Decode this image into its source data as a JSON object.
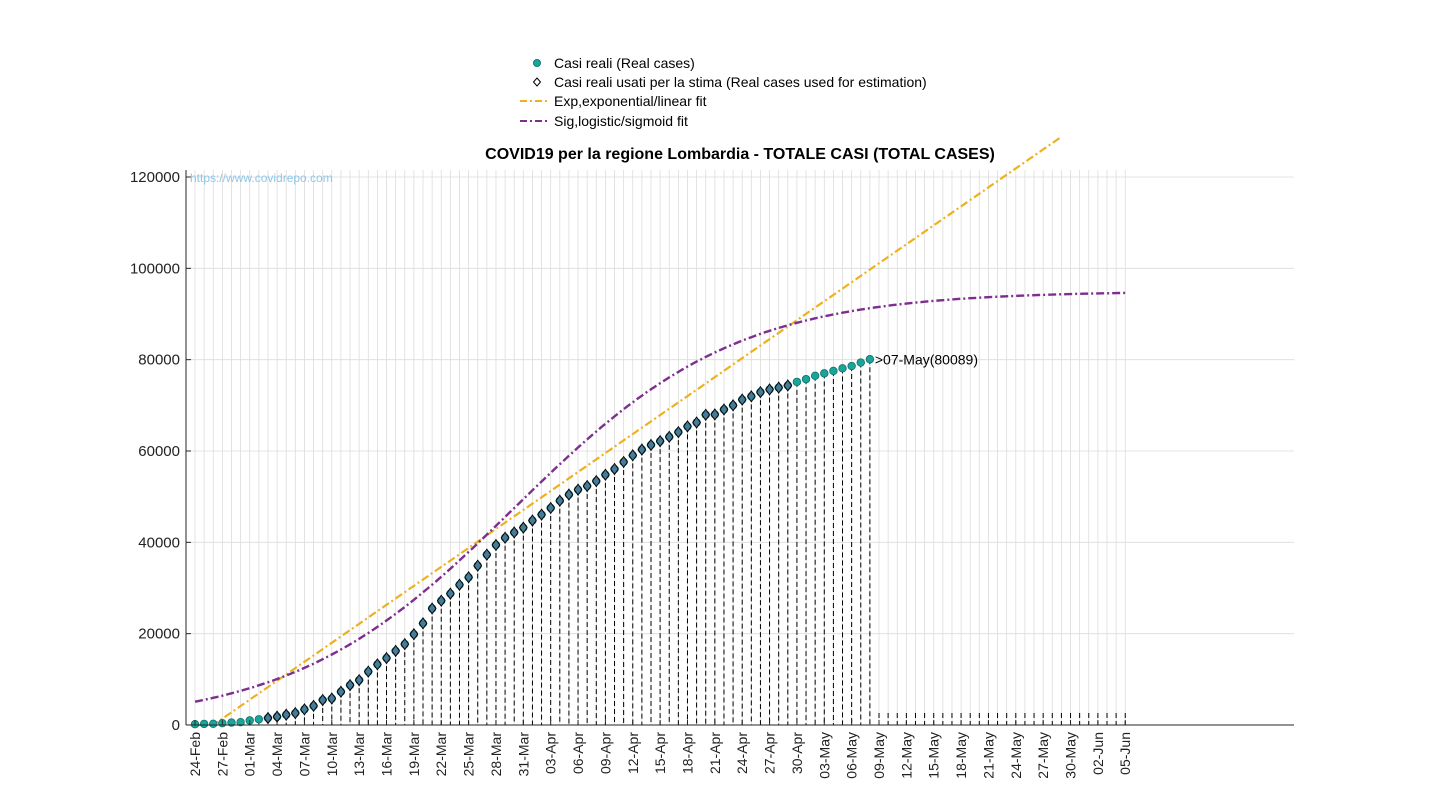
{
  "chart_data": {
    "type": "scatter",
    "title": "COVID19 per la regione Lombardia - TOTALE CASI (TOTAL CASES)",
    "watermark": "https://www.covidrepo.com",
    "xlabel": "",
    "ylabel": "",
    "x_start_date": "2020-02-24",
    "xlim_dates": [
      "2020-02-24",
      "2020-06-05"
    ],
    "ylim": [
      0,
      120000
    ],
    "y_ticks": [
      0,
      20000,
      40000,
      60000,
      80000,
      100000,
      120000
    ],
    "y_tick_labels": [
      "0",
      "20000",
      "40000",
      "60000",
      "80000",
      "100000",
      "120000"
    ],
    "x_tick_labels": [
      "24-Feb",
      "27-Feb",
      "01-Mar",
      "04-Mar",
      "07-Mar",
      "10-Mar",
      "13-Mar",
      "16-Mar",
      "19-Mar",
      "22-Mar",
      "25-Mar",
      "28-Mar",
      "31-Mar",
      "03-Apr",
      "06-Apr",
      "09-Apr",
      "12-Apr",
      "15-Apr",
      "18-Apr",
      "21-Apr",
      "24-Apr",
      "27-Apr",
      "30-Apr",
      "03-May",
      "06-May",
      "09-May",
      "12-May",
      "15-May",
      "18-May",
      "21-May",
      "24-May",
      "27-May",
      "30-May",
      "02-Jun",
      "05-Jun"
    ],
    "grid": true,
    "legend_position": "top-center",
    "legend": [
      {
        "label": "Casi reali (Real cases)",
        "marker": "circle",
        "color": "#1aa59a"
      },
      {
        "label": "Casi reali usati per la stima (Real cases used for estimation)",
        "marker": "diamond",
        "color": "#000000"
      },
      {
        "label": "Exp,exponential/linear fit",
        "line": "dash-dot",
        "color": "#edb120"
      },
      {
        "label": "Sig,logistic/sigmoid fit",
        "line": "dash-dot",
        "color": "#7e2f8e"
      }
    ],
    "annotation": ">07-May(80089)",
    "series": [
      {
        "name": "Casi reali (Real cases)",
        "color": "#1aa59a",
        "values": [
          172,
          240,
          258,
          403,
          531,
          615,
          984,
          1254,
          1520,
          1820,
          2251,
          2612,
          3420,
          4189,
          5469,
          5791,
          7280,
          8725,
          9820,
          11685,
          13272,
          14649,
          16220,
          17713,
          19884,
          22264,
          25515,
          27206,
          28761,
          30703,
          32346,
          34889,
          37298,
          39415,
          41007,
          42161,
          43208,
          44773,
          46065,
          47520,
          49118,
          50455,
          51534,
          52325,
          53414,
          54802,
          56048,
          57592,
          59052,
          60314,
          61326,
          62153,
          63094,
          64135,
          65381,
          66236,
          67931,
          68000,
          69092,
          70000,
          71256,
          71969,
          72889,
          73479,
          73876,
          74348,
          75134,
          75732,
          76469,
          77002,
          77528,
          78105,
          78605,
          79369,
          80089
        ],
        "used_for_estimation_start_index": 8
      }
    ],
    "fits": [
      {
        "name": "Exp,exponential/linear fit",
        "color": "#edb120",
        "linear_start_day": 2,
        "slope_per_day": 1385,
        "plotted_until_day": 95
      },
      {
        "name": "Sig,logistic/sigmoid fit",
        "color": "#7e2f8e",
        "K": 95000,
        "r": 0.082,
        "t0": 35
      }
    ]
  }
}
